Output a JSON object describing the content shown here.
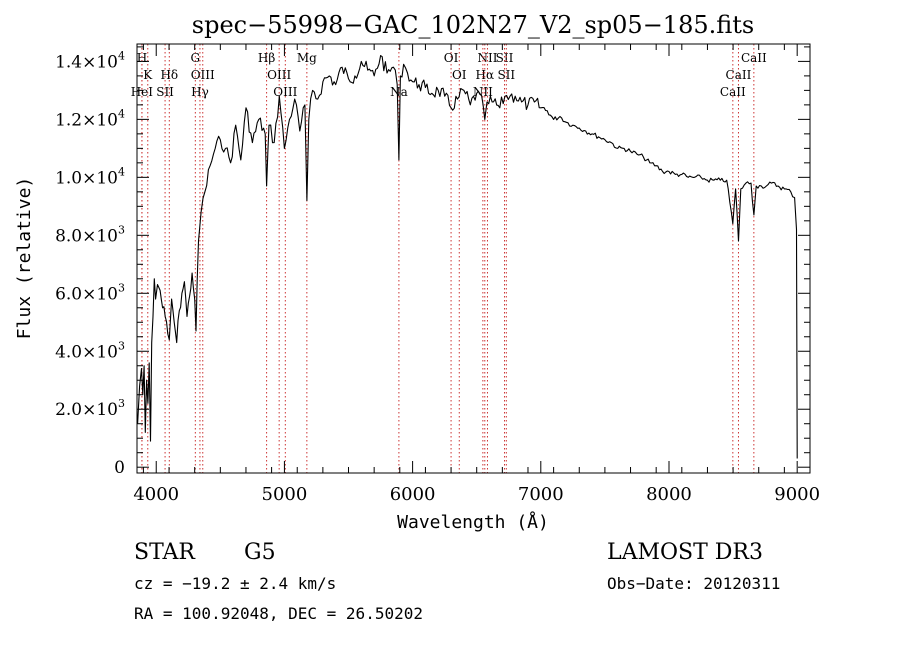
{
  "chart_data": {
    "type": "line",
    "title": "spec−55998−GAC_102N27_V2_sp05−185.fits",
    "xlabel": "Wavelength (Å)",
    "ylabel": "Flux (relative)",
    "xlim": [
      3850,
      9100
    ],
    "ylim": [
      -200,
      14600
    ],
    "xticks": [
      {
        "value": 4000,
        "label": "4000"
      },
      {
        "value": 5000,
        "label": "5000"
      },
      {
        "value": 6000,
        "label": "6000"
      },
      {
        "value": 7000,
        "label": "7000"
      },
      {
        "value": 8000,
        "label": "8000"
      },
      {
        "value": 9000,
        "label": "9000"
      }
    ],
    "yticks": [
      {
        "value": 0,
        "mant": "0",
        "exp": ""
      },
      {
        "value": 2000,
        "mant": "2.0×10",
        "exp": "3"
      },
      {
        "value": 4000,
        "mant": "4.0×10",
        "exp": "3"
      },
      {
        "value": 6000,
        "mant": "6.0×10",
        "exp": "3"
      },
      {
        "value": 8000,
        "mant": "8.0×10",
        "exp": "3"
      },
      {
        "value": 10000,
        "mant": "1.0×10",
        "exp": "4"
      },
      {
        "value": 12000,
        "mant": "1.2×10",
        "exp": "4"
      },
      {
        "value": 14000,
        "mant": "1.4×10",
        "exp": "4"
      }
    ],
    "series": [
      {
        "name": "flux",
        "x": [
          3855,
          3870,
          3885,
          3895,
          3905,
          3915,
          3925,
          3935,
          3945,
          3955,
          3965,
          3975,
          3985,
          3995,
          4010,
          4030,
          4050,
          4070,
          4090,
          4102,
          4120,
          4140,
          4160,
          4180,
          4200,
          4220,
          4240,
          4260,
          4280,
          4300,
          4310,
          4330,
          4350,
          4380,
          4420,
          4460,
          4500,
          4540,
          4580,
          4620,
          4660,
          4700,
          4750,
          4800,
          4850,
          4861,
          4880,
          4920,
          4960,
          5000,
          5040,
          5080,
          5120,
          5160,
          5175,
          5190,
          5220,
          5260,
          5300,
          5350,
          5400,
          5450,
          5500,
          5550,
          5600,
          5650,
          5700,
          5750,
          5800,
          5850,
          5880,
          5893,
          5905,
          5930,
          5960,
          6000,
          6050,
          6100,
          6150,
          6200,
          6250,
          6300,
          6350,
          6400,
          6450,
          6500,
          6550,
          6563,
          6580,
          6620,
          6680,
          6720,
          6760,
          6800,
          6850,
          6900,
          6950,
          7000,
          7050,
          7100,
          7150,
          7200,
          7250,
          7300,
          7350,
          7400,
          7450,
          7500,
          7550,
          7600,
          7650,
          7700,
          7750,
          7800,
          7850,
          7900,
          7950,
          8000,
          8050,
          8100,
          8150,
          8200,
          8250,
          8300,
          8350,
          8400,
          8450,
          8498,
          8520,
          8542,
          8560,
          8600,
          8640,
          8662,
          8680,
          8720,
          8760,
          8800,
          8850,
          8900,
          8950,
          8980,
          8995,
          9000
        ],
        "y": [
          1500,
          2800,
          3400,
          2500,
          3500,
          1200,
          3000,
          2200,
          3600,
          900,
          4300,
          5200,
          6500,
          5800,
          6300,
          6100,
          5500,
          5200,
          4600,
          4400,
          5800,
          5000,
          4300,
          5400,
          6000,
          6400,
          5200,
          5900,
          6700,
          5800,
          4700,
          7800,
          8800,
          9500,
          10400,
          11000,
          11300,
          11000,
          10500,
          11800,
          10600,
          12400,
          11200,
          12000,
          11500,
          9700,
          11800,
          11200,
          12800,
          11000,
          12000,
          12700,
          11600,
          12500,
          9200,
          12000,
          13000,
          12700,
          13300,
          13500,
          13200,
          13800,
          13400,
          13500,
          14000,
          13700,
          13500,
          14200,
          13600,
          13800,
          13200,
          10600,
          13500,
          13900,
          13600,
          13300,
          13200,
          13100,
          12900,
          13000,
          12800,
          12400,
          12700,
          13000,
          12500,
          12900,
          12500,
          12000,
          12600,
          12600,
          12400,
          12800,
          12800,
          12800,
          12600,
          12500,
          12600,
          12400,
          12300,
          12000,
          12100,
          11900,
          11800,
          11700,
          11600,
          11500,
          11400,
          11300,
          11200,
          11000,
          11000,
          10900,
          10800,
          10700,
          10500,
          10400,
          10200,
          10200,
          10100,
          10100,
          10000,
          10000,
          10000,
          9900,
          9900,
          9900,
          9900,
          8400,
          9600,
          7800,
          9600,
          9800,
          9800,
          8700,
          9700,
          9700,
          9700,
          9800,
          9700,
          9600,
          9500,
          9300,
          8200,
          300
        ]
      }
    ],
    "lines": [
      {
        "label": "H",
        "x": 3889,
        "tier": 0
      },
      {
        "label": "K",
        "x": 3934,
        "tier": 1
      },
      {
        "label": "HeI",
        "x": 3888,
        "tier": 2
      },
      {
        "label": "SII",
        "x": 4069,
        "tier": 2
      },
      {
        "label": "Hδ",
        "x": 4102,
        "tier": 1
      },
      {
        "label": "G",
        "x": 4305,
        "tier": 0
      },
      {
        "label": "OIII",
        "x": 4363,
        "tier": 1
      },
      {
        "label": "Hγ",
        "x": 4341,
        "tier": 2
      },
      {
        "label": "Hβ",
        "x": 4861,
        "tier": 0
      },
      {
        "label": "OIII",
        "x": 4959,
        "tier": 1
      },
      {
        "label": "OIII",
        "x": 5007,
        "tier": 2
      },
      {
        "label": "Mg",
        "x": 5175,
        "tier": 0
      },
      {
        "label": "Na",
        "x": 5893,
        "tier": 2
      },
      {
        "label": "OI",
        "x": 6300,
        "tier": 0
      },
      {
        "label": "OI",
        "x": 6364,
        "tier": 1
      },
      {
        "label": "NII",
        "x": 6584,
        "tier": 0
      },
      {
        "label": "Hα",
        "x": 6563,
        "tier": 1
      },
      {
        "label": "NII",
        "x": 6548,
        "tier": 2
      },
      {
        "label": "SII",
        "x": 6717,
        "tier": 0
      },
      {
        "label": "SII",
        "x": 6731,
        "tier": 1
      },
      {
        "label": "CaII",
        "x": 8662,
        "tier": 0
      },
      {
        "label": "CaII",
        "x": 8542,
        "tier": 1
      },
      {
        "label": "CaII",
        "x": 8498,
        "tier": 2
      }
    ],
    "line_color": "#cc3333",
    "series_color": "#000000"
  },
  "info": {
    "class_text": "STAR",
    "subclass_text": "G5",
    "survey": "LAMOST DR3",
    "redshift": "cz = −19.2 ± 2.4 km/s",
    "obs_date": "Obs−Date: 20120311",
    "coords": "RA = 100.92048, DEC =  26.50202"
  }
}
